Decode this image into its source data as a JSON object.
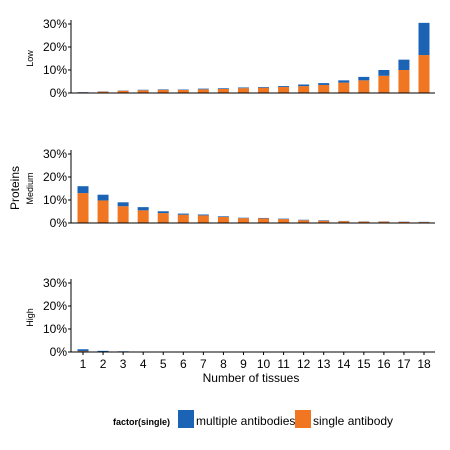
{
  "chart_data": {
    "type": "bar",
    "stacked": true,
    "x": [
      1,
      2,
      3,
      4,
      5,
      6,
      7,
      8,
      9,
      10,
      11,
      12,
      13,
      14,
      15,
      16,
      17,
      18
    ],
    "xlabel": "Number of tissues",
    "ylabel": "Proteins",
    "ylim": [
      0,
      30
    ],
    "yticks": [
      "0%",
      "10%",
      "20%",
      "30%"
    ],
    "grid": false,
    "legend": {
      "title": "factor(single)",
      "position": "bottom",
      "entries": [
        {
          "label": "multiple antibodies",
          "color": "#1a63b5"
        },
        {
          "label": "single antibody",
          "color": "#f07622"
        }
      ]
    },
    "facets": [
      {
        "label": "Low",
        "single": [
          0.3,
          0.6,
          1.0,
          1.2,
          1.4,
          1.3,
          1.6,
          1.8,
          2.1,
          2.3,
          2.6,
          3.0,
          3.5,
          4.5,
          5.5,
          7.5,
          10.0,
          16.5
        ],
        "multiple": [
          0.1,
          0.1,
          0.1,
          0.2,
          0.2,
          0.2,
          0.3,
          0.3,
          0.3,
          0.3,
          0.4,
          0.7,
          0.8,
          1.0,
          1.5,
          2.5,
          4.5,
          14.0
        ]
      },
      {
        "label": "Medium",
        "single": [
          13.0,
          9.8,
          7.3,
          5.5,
          4.3,
          3.6,
          3.3,
          2.6,
          2.1,
          2.0,
          1.7,
          1.2,
          1.0,
          0.8,
          0.6,
          0.6,
          0.5,
          0.4
        ],
        "multiple": [
          3.0,
          2.5,
          1.7,
          1.4,
          0.8,
          0.5,
          0.4,
          0.3,
          0.2,
          0.2,
          0.2,
          0.2,
          0.2,
          0.1,
          0.1,
          0.1,
          0.1,
          0.1
        ]
      },
      {
        "label": "High",
        "single": [
          0.4,
          0.2,
          0.1,
          0.1,
          0.05,
          0.05,
          0.05,
          0.05,
          0.05,
          0.05,
          0.05,
          0.05,
          0.05,
          0.05,
          0.05,
          0.05,
          0.05,
          0.05
        ],
        "multiple": [
          0.8,
          0.3,
          0.2,
          0.1,
          0.1,
          0.05,
          0.05,
          0.05,
          0.05,
          0.05,
          0.05,
          0.05,
          0.05,
          0.05,
          0.05,
          0.05,
          0.05,
          0.05
        ]
      }
    ]
  }
}
